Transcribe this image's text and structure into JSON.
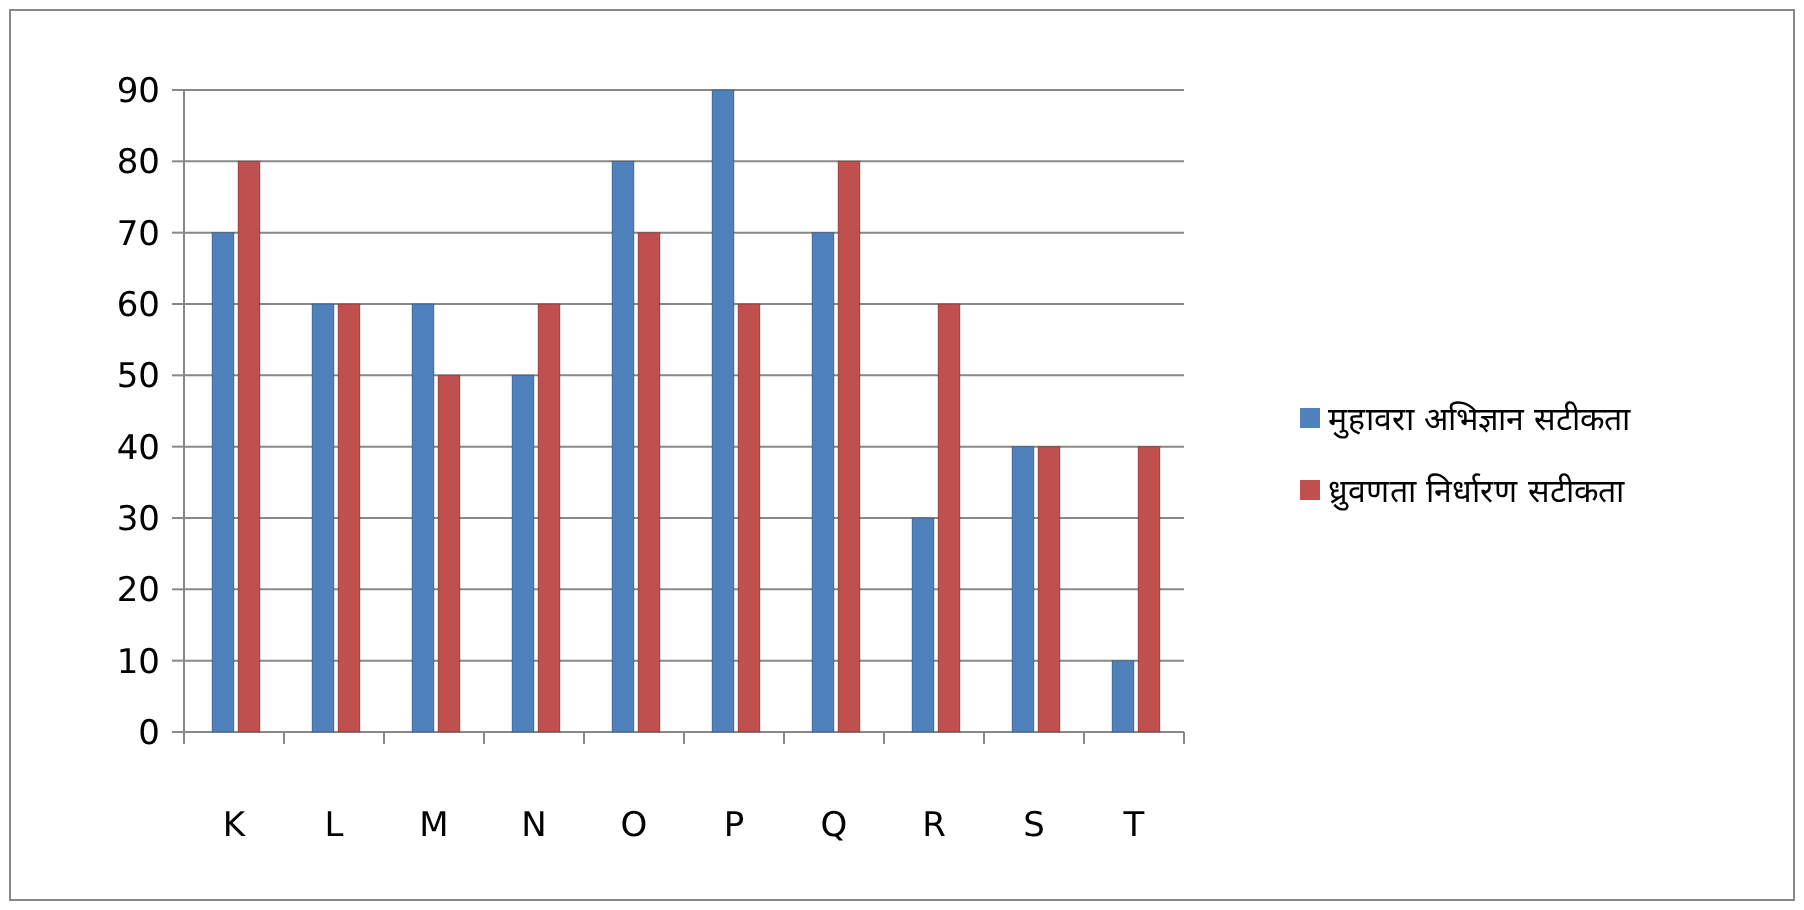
{
  "chart_data": {
    "type": "bar",
    "categories": [
      "K",
      "L",
      "M",
      "N",
      "O",
      "P",
      "Q",
      "R",
      "S",
      "T"
    ],
    "series": [
      {
        "name": "मुहावरा अभिज्ञान सटीकता",
        "color": "#4f81bd",
        "values": [
          70,
          60,
          60,
          50,
          80,
          90,
          70,
          30,
          40,
          10
        ]
      },
      {
        "name": "ध्रुवणता निर्धारण सटीकता",
        "color": "#c0504d",
        "values": [
          80,
          60,
          50,
          60,
          70,
          60,
          80,
          60,
          40,
          40
        ]
      }
    ],
    "ylim": [
      0,
      90
    ],
    "yticks": [
      0,
      10,
      20,
      30,
      40,
      50,
      60,
      70,
      80,
      90
    ],
    "grid": "y",
    "legend": "right"
  }
}
